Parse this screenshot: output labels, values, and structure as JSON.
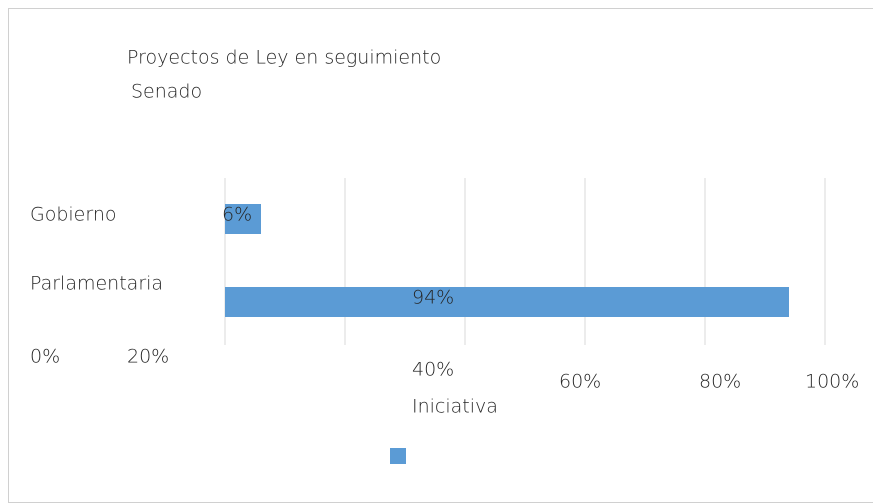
{
  "chart_data": {
    "type": "bar",
    "orientation": "horizontal",
    "title": [
      "Proyectos de Ley en seguimiento",
      "Senado"
    ],
    "x_axis_label": "Iniciativa",
    "categories": [
      "Gobierno",
      "Parlamentaria"
    ],
    "values": [
      6,
      94
    ],
    "value_labels": [
      "6%",
      "94%"
    ],
    "color": "#5b9bd5",
    "xlim": [
      0,
      100
    ],
    "xticks": [
      {
        "value": 0,
        "label": "0%"
      },
      {
        "value": 20,
        "label": "20%"
      },
      {
        "value": 40,
        "label": "40%"
      },
      {
        "value": 60,
        "label": "60%"
      },
      {
        "value": 80,
        "label": "80%"
      },
      {
        "value": 100,
        "label": "100%"
      }
    ],
    "grid": true,
    "legend": "bottom"
  }
}
